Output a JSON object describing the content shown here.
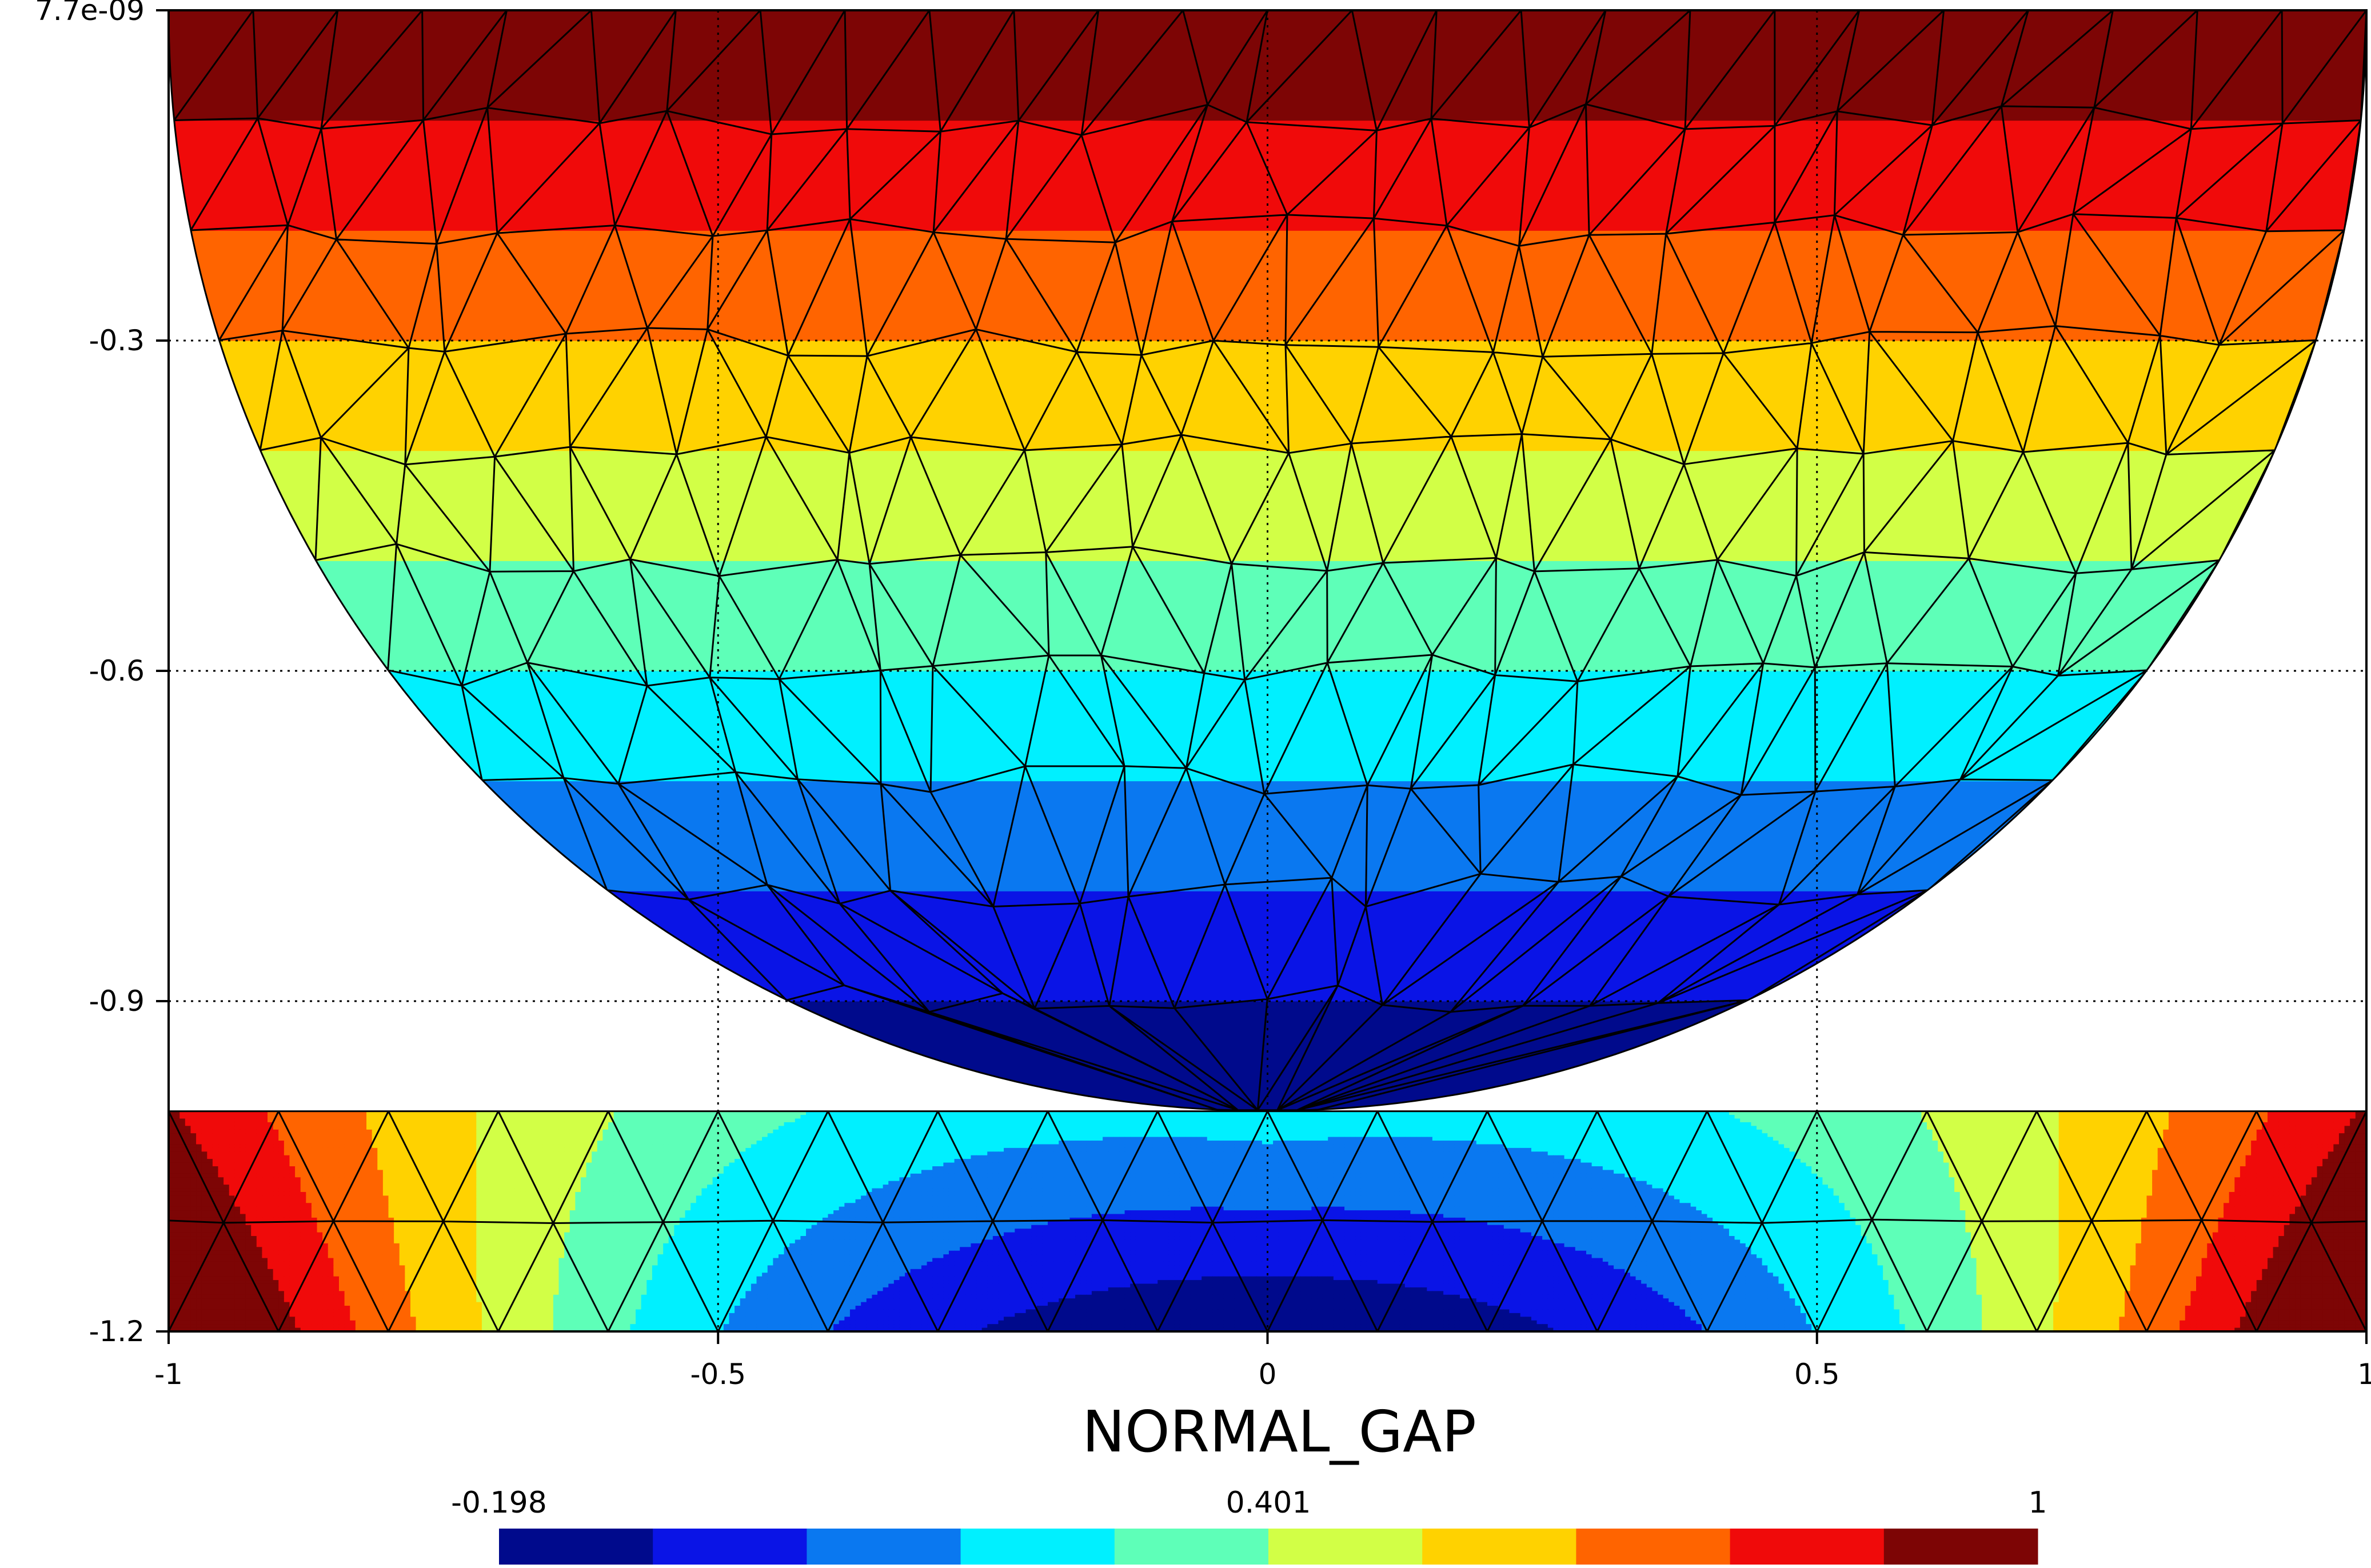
{
  "chart_data": {
    "type": "heatmap",
    "title": "NORMAL_GAP",
    "xlabel": "",
    "ylabel": "",
    "xlim": [
      -1,
      1
    ],
    "ylim": [
      -1.2,
      7.7e-09
    ],
    "x_ticks": [
      {
        "value": -1,
        "label": "-1"
      },
      {
        "value": -0.5,
        "label": "-0.5"
      },
      {
        "value": 0,
        "label": "0"
      },
      {
        "value": 0.5,
        "label": "0.5"
      },
      {
        "value": 1,
        "label": "1"
      }
    ],
    "y_ticks": [
      {
        "value": 7.7e-09,
        "label": "7.7e-09"
      },
      {
        "value": -0.3,
        "label": "-0.3"
      },
      {
        "value": -0.6,
        "label": "-0.6"
      },
      {
        "value": -0.9,
        "label": "-0.9"
      },
      {
        "value": -1.2,
        "label": "-1.2"
      }
    ],
    "grid": true,
    "colorbar": {
      "min": -0.198,
      "max": 1,
      "labels": [
        {
          "value": -0.198,
          "label": "-0.198"
        },
        {
          "value": 0.401,
          "label": "0.401"
        },
        {
          "value": 1,
          "label": "1"
        }
      ],
      "colors": [
        "#000a8c",
        "#0a14e6",
        "#0a78f0",
        "#00f0ff",
        "#5effb8",
        "#d2ff46",
        "#ffd200",
        "#ff6400",
        "#f00a0a",
        "#7d0505"
      ]
    },
    "regions": {
      "half_disk": {
        "center": [
          0,
          0
        ],
        "radius": 1,
        "field": "y-varying",
        "level_at_top": 1,
        "level_at_bottom": -0.198
      },
      "block": {
        "x": [
          -1,
          1
        ],
        "y": [
          -1.2,
          -1.0
        ],
        "field": "varies with x, low near center, high near edges"
      }
    }
  }
}
